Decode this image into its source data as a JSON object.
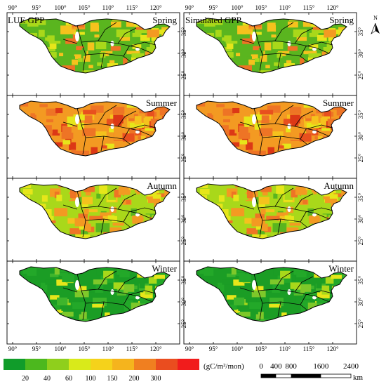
{
  "columns": [
    {
      "title": "LUE GPP"
    },
    {
      "title": "Simulated GPP"
    }
  ],
  "seasons": [
    "Spring",
    "Summer",
    "Autumn",
    "Winter"
  ],
  "season_palette": {
    "Spring": [
      "#5ab51f",
      "#a9d81a",
      "#e6e61a",
      "#f5c21d",
      "#f39a22",
      "#ee7425"
    ],
    "Summer": [
      "#f39a22",
      "#ee7425",
      "#e8501e",
      "#dc3816",
      "#f5c21d",
      "#e6e61a"
    ],
    "Autumn": [
      "#a9d81a",
      "#e6e61a",
      "#f5c21d",
      "#f39a22",
      "#ee7425",
      "#5ab51f"
    ],
    "Winter": [
      "#1b9d25",
      "#23a829",
      "#3eb52c",
      "#7ec82a",
      "#a9d81a",
      "#e6e61a"
    ]
  },
  "lon_ticks": [
    "90°",
    "95°",
    "100°",
    "105°",
    "110°",
    "115°",
    "120°"
  ],
  "lat_ticks": [
    "35°",
    "30°",
    "25°"
  ],
  "north_arrow": "N",
  "legend": {
    "unit": "(gC/m²/mon)",
    "colors": [
      "#109c2a",
      "#4cb81e",
      "#8fcf1c",
      "#d9ea1a",
      "#f5d21b",
      "#f5b41d",
      "#f07f20",
      "#ea4d1f",
      "#f11c1c"
    ],
    "labels": [
      "20",
      "40",
      "60",
      "100",
      "150",
      "200",
      "300"
    ]
  },
  "scalebar": {
    "labels": [
      "0",
      "400",
      "800",
      "1600",
      "2400"
    ],
    "unit": "km"
  }
}
